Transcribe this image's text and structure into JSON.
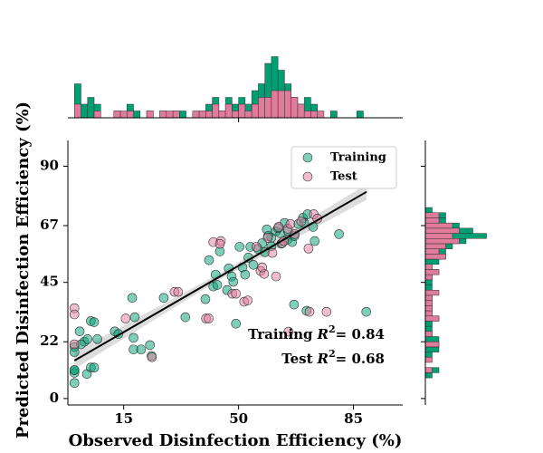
{
  "chart_data": [
    {
      "type": "scatter",
      "xlabel": "Observed Disinfection Efficiency (%)",
      "ylabel": "Predicted Disinfection Efficiency (%)",
      "xlim": [
        -2,
        100
      ],
      "ylim": [
        -2.5,
        100
      ],
      "xticks": [
        15,
        50,
        85
      ],
      "yticks": [
        0,
        22,
        45,
        67,
        90
      ],
      "legend": "upper right",
      "marker_alpha": 0.5,
      "series": [
        {
          "name": "Training",
          "color": "#009e73",
          "x": [
            0,
            0,
            0,
            0,
            0,
            0,
            1.6,
            3,
            4,
            5,
            6,
            7,
            3.8,
            5,
            6,
            2,
            12.3,
            13.4,
            17.6,
            18.4,
            18,
            18,
            20.3,
            23,
            23.5,
            27.2,
            33.8,
            39.9,
            41,
            43,
            44.3,
            42.3,
            43.5,
            46.5,
            47,
            47.9,
            48.4,
            49.2,
            50.3,
            51.2,
            52,
            53,
            54.5,
            55.9,
            57.2,
            58,
            60,
            61.4,
            62.7,
            64.9,
            66.3,
            68.2,
            69.6,
            71,
            72.7,
            73.2,
            66.9,
            70.7,
            88.9,
            80.6,
            64,
            58.6,
            53.6,
            59,
            62,
            65,
            67,
            70,
            63,
            60
          ],
          "y": [
            10,
            11,
            6,
            20,
            18,
            11,
            26,
            22,
            23,
            30,
            29.6,
            23,
            9.5,
            12,
            12,
            21,
            26,
            25,
            39,
            31.5,
            23.5,
            19,
            19,
            20.7,
            16.5,
            39,
            31.5,
            38.5,
            53.6,
            48,
            57,
            43.4,
            44,
            42,
            50.4,
            47.3,
            45.2,
            29,
            58.8,
            50.8,
            48,
            54.6,
            51.8,
            58,
            60.2,
            56.7,
            62.3,
            64.8,
            64,
            61.6,
            60.6,
            67.6,
            70,
            71.4,
            66.5,
            61,
            36.4,
            34,
            33.6,
            63.7,
            68,
            65.5,
            58.8,
            63,
            66,
            65,
            63,
            68,
            60,
            59
          ]
        },
        {
          "name": "Test",
          "color": "#e07b9b",
          "x": [
            0,
            0,
            0,
            15.6,
            23.6,
            30.5,
            31.6,
            40.1,
            40.9,
            42.3,
            44.6,
            44.3,
            48.1,
            49.2,
            51.7,
            52.8,
            56.7,
            57.8,
            60.3,
            61.4,
            63.3,
            65,
            65.8,
            67.1,
            69.1,
            71.3,
            72.9,
            74,
            76.8,
            65.2,
            58.9,
            62.2,
            63.8,
            55.4,
            57.2,
            71.6
          ],
          "y": [
            35,
            32.6,
            21,
            31,
            16,
            41.3,
            41.3,
            31,
            31,
            60.6,
            61,
            59.9,
            40.6,
            40.6,
            37.5,
            38,
            49.4,
            48.3,
            56.4,
            47.3,
            60.2,
            65.8,
            67.6,
            63.7,
            68.6,
            58.1,
            71.4,
            69.7,
            33.6,
            25.9,
            62.3,
            66.5,
            61,
            58.8,
            50.8,
            33.6
          ]
        }
      ],
      "fit_line": {
        "color": "#000000",
        "x": [
          0,
          89
        ],
        "y": [
          14.7,
          80.1
        ]
      },
      "confidence_band": {
        "color": "#bbbbbb",
        "x": [
          0,
          45,
          89
        ],
        "lower": [
          11.5,
          46.6,
          77
        ],
        "upper": [
          18,
          49,
          83
        ]
      },
      "annotations": [
        {
          "prefix": "Training",
          "symbol": "R",
          "superscript": "2",
          "suffix": "= 0.84"
        },
        {
          "prefix": "Test",
          "symbol": "R",
          "superscript": "2",
          "suffix": "= 0.68"
        }
      ]
    },
    {
      "type": "histogram",
      "orientation": "vertical",
      "xlim": [
        -2,
        100
      ],
      "ylim": [
        0,
        10
      ],
      "xticks": [
        50
      ],
      "bins": [
        -2,
        0,
        2,
        4,
        6,
        8,
        10,
        12,
        14,
        16,
        18,
        20,
        22,
        24,
        26,
        28,
        30,
        32,
        34,
        36,
        38,
        40,
        42,
        44,
        46,
        48,
        50,
        52,
        54,
        56,
        58,
        60,
        62,
        64,
        66,
        68,
        70,
        72,
        74,
        76,
        78,
        80,
        82,
        84,
        86,
        88,
        90,
        92,
        94,
        96,
        98,
        100
      ],
      "series": [
        {
          "color": "#009e73",
          "values": [
            0,
            5,
            2,
            3,
            2,
            0,
            0,
            1,
            0,
            2,
            1,
            0,
            1,
            0,
            1,
            0,
            1,
            1,
            0,
            0,
            1,
            2,
            3,
            1,
            3,
            2,
            3,
            2,
            4,
            5,
            8,
            9,
            7,
            5,
            3,
            2,
            3,
            2,
            0,
            0,
            1,
            0,
            0,
            0,
            1,
            0,
            0,
            0,
            0,
            0,
            0
          ]
        },
        {
          "color": "#e07b9b",
          "values": [
            0,
            2,
            0,
            0,
            1,
            0,
            0,
            1,
            1,
            1,
            0,
            0,
            1,
            0,
            1,
            1,
            1,
            0,
            0,
            1,
            1,
            1,
            2,
            1,
            2,
            1,
            2,
            1,
            2,
            3,
            3,
            4,
            4,
            4,
            3,
            2,
            1,
            1,
            1,
            0,
            0,
            0,
            0,
            0,
            0,
            0,
            0,
            0,
            0,
            0,
            0
          ]
        }
      ]
    },
    {
      "type": "histogram",
      "orientation": "horizontal",
      "ylim": [
        -2.5,
        100
      ],
      "xlim": [
        0,
        10
      ],
      "yticks": [
        0,
        22,
        45,
        67,
        90
      ],
      "bins": [
        -2,
        0,
        2,
        4,
        6,
        8,
        10,
        12,
        14,
        16,
        18,
        20,
        22,
        24,
        26,
        28,
        30,
        32,
        34,
        36,
        38,
        40,
        42,
        44,
        46,
        48,
        50,
        52,
        54,
        56,
        58,
        60,
        62,
        64,
        66,
        68,
        70,
        72,
        74,
        76,
        78,
        80,
        82,
        84,
        86,
        88,
        90,
        92,
        94,
        96,
        98,
        100
      ],
      "series": [
        {
          "color": "#009e73",
          "values": [
            0,
            0,
            0,
            0,
            0,
            1,
            2,
            0,
            0,
            1,
            2,
            2,
            2,
            1,
            1,
            1,
            2,
            1,
            1,
            1,
            1,
            0,
            1,
            1,
            1,
            2,
            1,
            2,
            3,
            3,
            4,
            6,
            9,
            7,
            5,
            3,
            3,
            1,
            0,
            0,
            0,
            0,
            0,
            0,
            0,
            0,
            0,
            0,
            0,
            0,
            0
          ]
        },
        {
          "color": "#e07b9b",
          "values": [
            0,
            0,
            0,
            0,
            0,
            0,
            1,
            0,
            1,
            0,
            0,
            2,
            0,
            1,
            0,
            0,
            2,
            1,
            1,
            1,
            1,
            2,
            0,
            0,
            1,
            2,
            1,
            0,
            3,
            2,
            3,
            5,
            4,
            5,
            4,
            2,
            2,
            0,
            0,
            0,
            0,
            0,
            0,
            0,
            0,
            0,
            0,
            0,
            0,
            0,
            0
          ]
        }
      ]
    }
  ]
}
